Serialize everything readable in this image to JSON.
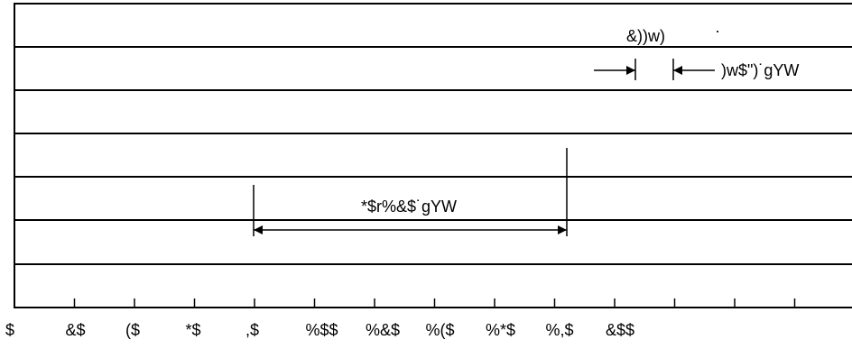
{
  "diagram": {
    "top_label": "&))w)",
    "top_dot": "·",
    "dim_right_label": ")w$\")˙gYW",
    "dim_main_label": "*$r%&$˙gYW",
    "tick_labels": [
      "$",
      "&$",
      "($",
      "*$",
      ",$",
      "%$$",
      "%&$",
      "%($",
      "%*$",
      "%,$",
      "&$$"
    ]
  }
}
